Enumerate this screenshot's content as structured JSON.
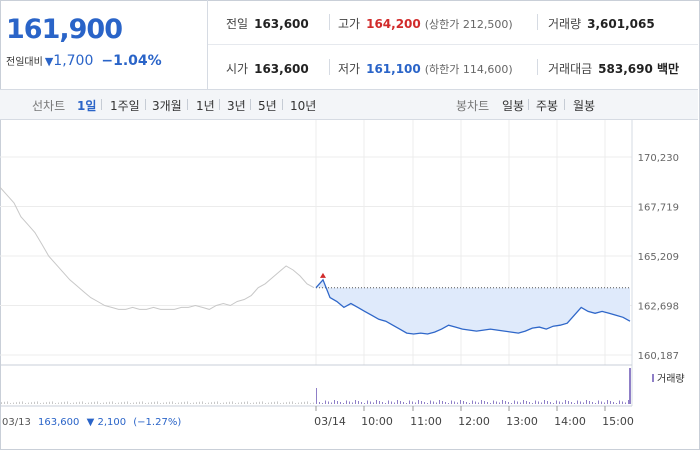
{
  "quote": {
    "price": "161,900",
    "change_label": "전일대비",
    "change_arrow": "▼",
    "change_value": "1,700",
    "change_pct": "−1.04%"
  },
  "stats": {
    "prev_close_label": "전일",
    "prev_close": "163,600",
    "high_label": "고가",
    "high": "164,200",
    "upper_limit": "(상한가 212,500)",
    "volume_label": "거래량",
    "volume": "3,601,065",
    "open_label": "시가",
    "open": "163,600",
    "low_label": "저가",
    "low": "161,100",
    "lower_limit": "(하한가 114,600)",
    "amount_label": "거래대금",
    "amount": "583,690 백만"
  },
  "tabs": {
    "line_label": "선차트",
    "line_periods": [
      "1일",
      "1주일",
      "3개월",
      "1년",
      "3년",
      "5년",
      "10년"
    ],
    "selected": "1일",
    "candle_label": "봉차트",
    "candle_periods": [
      "일봉",
      "주봉",
      "월봉"
    ]
  },
  "colors": {
    "price_blue": "#2a64c8",
    "up_red": "#d12b2b",
    "prev_day_line": "#c8c8c8",
    "today_line": "#2f67c9",
    "today_fill": "#dfeafb"
  },
  "chart_data": {
    "type": "line",
    "y_ticks": [
      "170,230",
      "167,719",
      "165,209",
      "162,698",
      "160,187"
    ],
    "x_ticks": [
      "03/14",
      "10:00",
      "11:00",
      "12:00",
      "13:00",
      "14:00",
      "15:00"
    ],
    "prev_day": {
      "date": "03/13",
      "close": "163,600",
      "change_arrow": "▼",
      "change": "2,100",
      "change_pct": "(−1.27%)",
      "values": [
        168700,
        168300,
        167900,
        167200,
        166800,
        166400,
        165800,
        165200,
        164800,
        164400,
        164000,
        163700,
        163400,
        163100,
        162900,
        162700,
        162600,
        162500,
        162500,
        162600,
        162500,
        162500,
        162600,
        162500,
        162500,
        162500,
        162600,
        162600,
        162700,
        162600,
        162500,
        162700,
        162800,
        162700,
        162900,
        163000,
        163200,
        163600,
        163800,
        164100,
        164400,
        164700,
        164500,
        164200,
        163800,
        163600
      ]
    },
    "today": {
      "values": [
        163600,
        164000,
        163100,
        162900,
        162600,
        162800,
        162600,
        162400,
        162200,
        162000,
        161900,
        161700,
        161500,
        161300,
        161250,
        161300,
        161250,
        161350,
        161500,
        161700,
        161600,
        161500,
        161450,
        161400,
        161450,
        161500,
        161450,
        161400,
        161350,
        161300,
        161400,
        161550,
        161600,
        161500,
        161650,
        161700,
        161800,
        162200,
        162600,
        162400,
        162300,
        162400,
        162300,
        162200,
        162100,
        161900
      ],
      "reference": 163600
    },
    "volume_label": "거래량"
  }
}
